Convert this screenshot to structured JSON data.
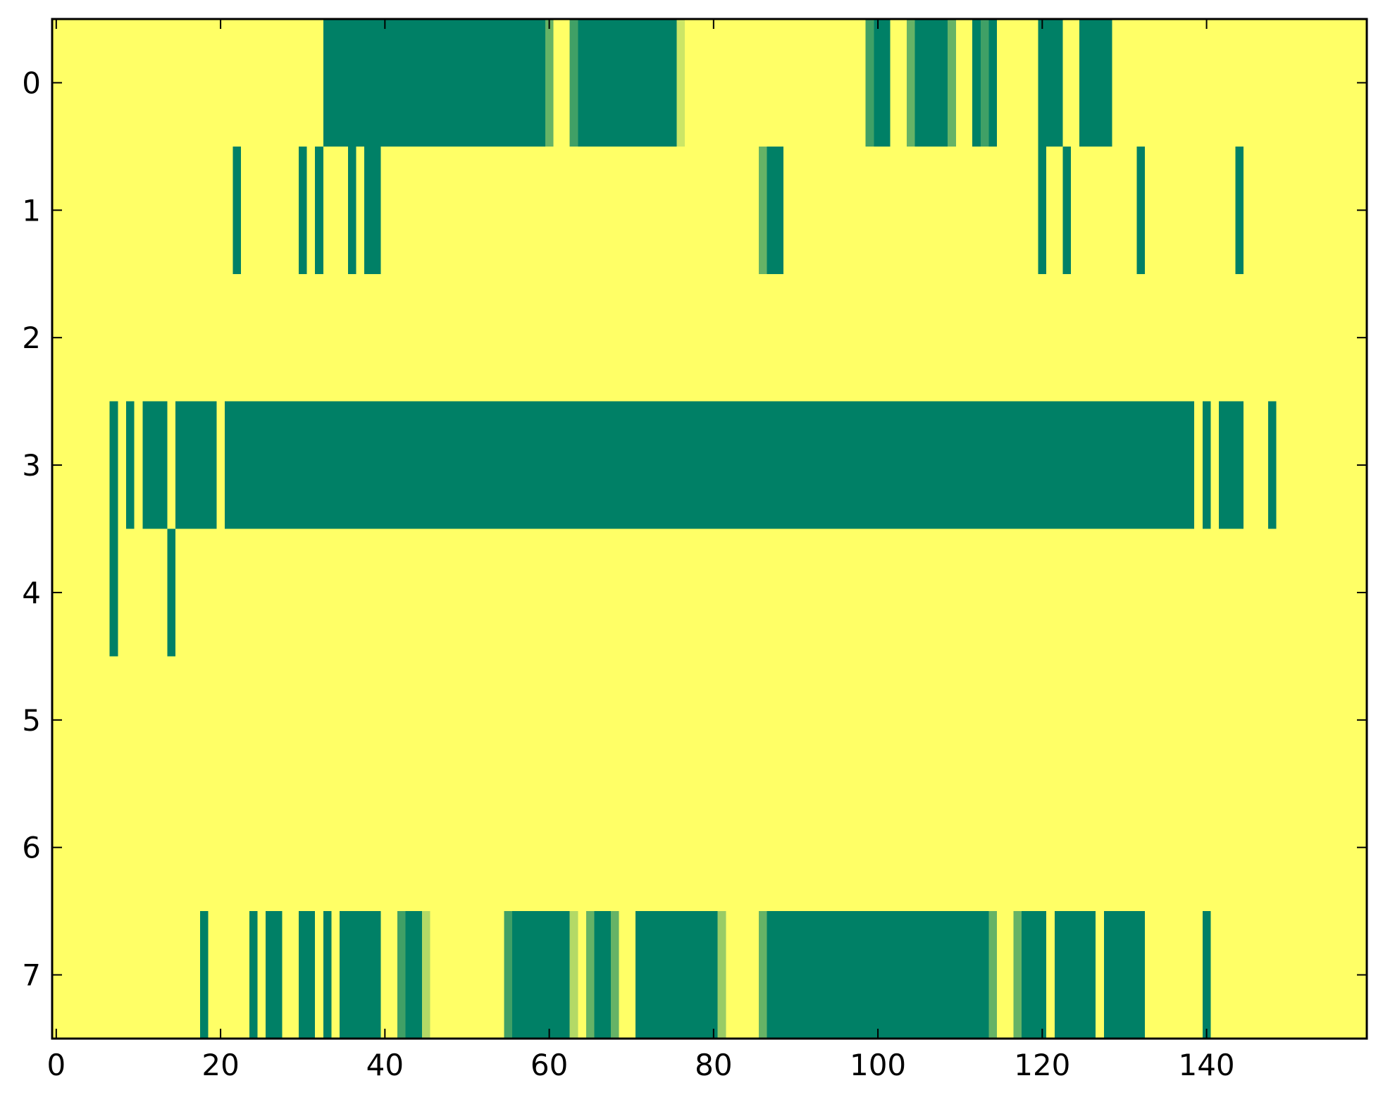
{
  "chart_data": {
    "type": "heatmap",
    "title": "",
    "xlabel": "",
    "ylabel": "",
    "xlim": [
      -0.5,
      159.5
    ],
    "ylim": [
      7.5,
      -0.5
    ],
    "xticks": [
      "0",
      "20",
      "40",
      "60",
      "80",
      "100",
      "120",
      "140"
    ],
    "yticks": [
      "0",
      "1",
      "2",
      "3",
      "4",
      "5",
      "6",
      "7"
    ],
    "n_cols": 160,
    "n_rows": 8,
    "colormap": "summer_r",
    "colors": {
      "low": "#ffff66",
      "high": "#008066",
      "mid_high": "#66b266",
      "mid_low": "#ccdd66"
    },
    "rows": [
      {
        "row": 0,
        "runs": [
          [
            32.5,
            59.5,
            1.0
          ],
          [
            59.5,
            60.5,
            0.6
          ],
          [
            62.5,
            63.5,
            0.75
          ],
          [
            63.5,
            75.5,
            1.0
          ],
          [
            75.5,
            76.5,
            0.2
          ],
          [
            98.5,
            99.5,
            0.75
          ],
          [
            99.5,
            101.5,
            1.0
          ],
          [
            103.5,
            104.5,
            0.6
          ],
          [
            104.5,
            108.5,
            1.0
          ],
          [
            108.5,
            109.5,
            0.6
          ],
          [
            111.5,
            112.5,
            1.0
          ],
          [
            112.5,
            113.5,
            0.75
          ],
          [
            113.5,
            114.5,
            1.0
          ],
          [
            119.5,
            122.5,
            1.0
          ],
          [
            124.5,
            128.5,
            1.0
          ]
        ]
      },
      {
        "row": 1,
        "runs": [
          [
            21.5,
            22.5,
            1.0
          ],
          [
            29.5,
            30.5,
            1.0
          ],
          [
            31.5,
            32.5,
            1.0
          ],
          [
            35.5,
            36.5,
            1.0
          ],
          [
            37.5,
            39.5,
            1.0
          ],
          [
            85.5,
            86.5,
            0.6
          ],
          [
            86.5,
            88.5,
            1.0
          ],
          [
            119.5,
            120.5,
            1.0
          ],
          [
            122.5,
            123.5,
            1.0
          ],
          [
            131.5,
            132.5,
            1.0
          ],
          [
            143.5,
            144.5,
            1.0
          ]
        ]
      },
      {
        "row": 2,
        "runs": []
      },
      {
        "row": 3,
        "runs": [
          [
            6.5,
            7.5,
            1.0
          ],
          [
            8.5,
            9.5,
            1.0
          ],
          [
            10.5,
            13.5,
            1.0
          ],
          [
            14.5,
            19.5,
            1.0
          ],
          [
            20.5,
            138.5,
            1.0
          ],
          [
            139.5,
            140.5,
            1.0
          ],
          [
            141.5,
            144.5,
            1.0
          ],
          [
            147.5,
            148.5,
            1.0
          ]
        ]
      },
      {
        "row": 4,
        "runs": [
          [
            6.5,
            7.5,
            1.0
          ],
          [
            13.5,
            14.5,
            1.0
          ]
        ]
      },
      {
        "row": 5,
        "runs": []
      },
      {
        "row": 6,
        "runs": []
      },
      {
        "row": 7,
        "runs": [
          [
            17.5,
            18.5,
            1.0
          ],
          [
            23.5,
            24.5,
            1.0
          ],
          [
            25.5,
            27.5,
            1.0
          ],
          [
            29.5,
            31.5,
            1.0
          ],
          [
            32.5,
            33.5,
            1.0
          ],
          [
            34.5,
            39.5,
            1.0
          ],
          [
            41.5,
            42.5,
            0.75
          ],
          [
            42.5,
            44.5,
            1.0
          ],
          [
            44.5,
            45.5,
            0.3
          ],
          [
            54.5,
            55.5,
            0.75
          ],
          [
            55.5,
            62.5,
            1.0
          ],
          [
            62.5,
            63.5,
            0.3
          ],
          [
            64.5,
            65.5,
            0.6
          ],
          [
            65.5,
            67.5,
            1.0
          ],
          [
            67.5,
            68.5,
            0.6
          ],
          [
            70.5,
            80.5,
            1.0
          ],
          [
            80.5,
            81.5,
            0.4
          ],
          [
            85.5,
            86.5,
            0.6
          ],
          [
            86.5,
            113.5,
            1.0
          ],
          [
            113.5,
            114.5,
            0.6
          ],
          [
            116.5,
            117.5,
            0.6
          ],
          [
            117.5,
            120.5,
            1.0
          ],
          [
            121.5,
            126.5,
            1.0
          ],
          [
            127.5,
            132.5,
            1.0
          ],
          [
            139.5,
            140.5,
            1.0
          ]
        ]
      }
    ]
  }
}
